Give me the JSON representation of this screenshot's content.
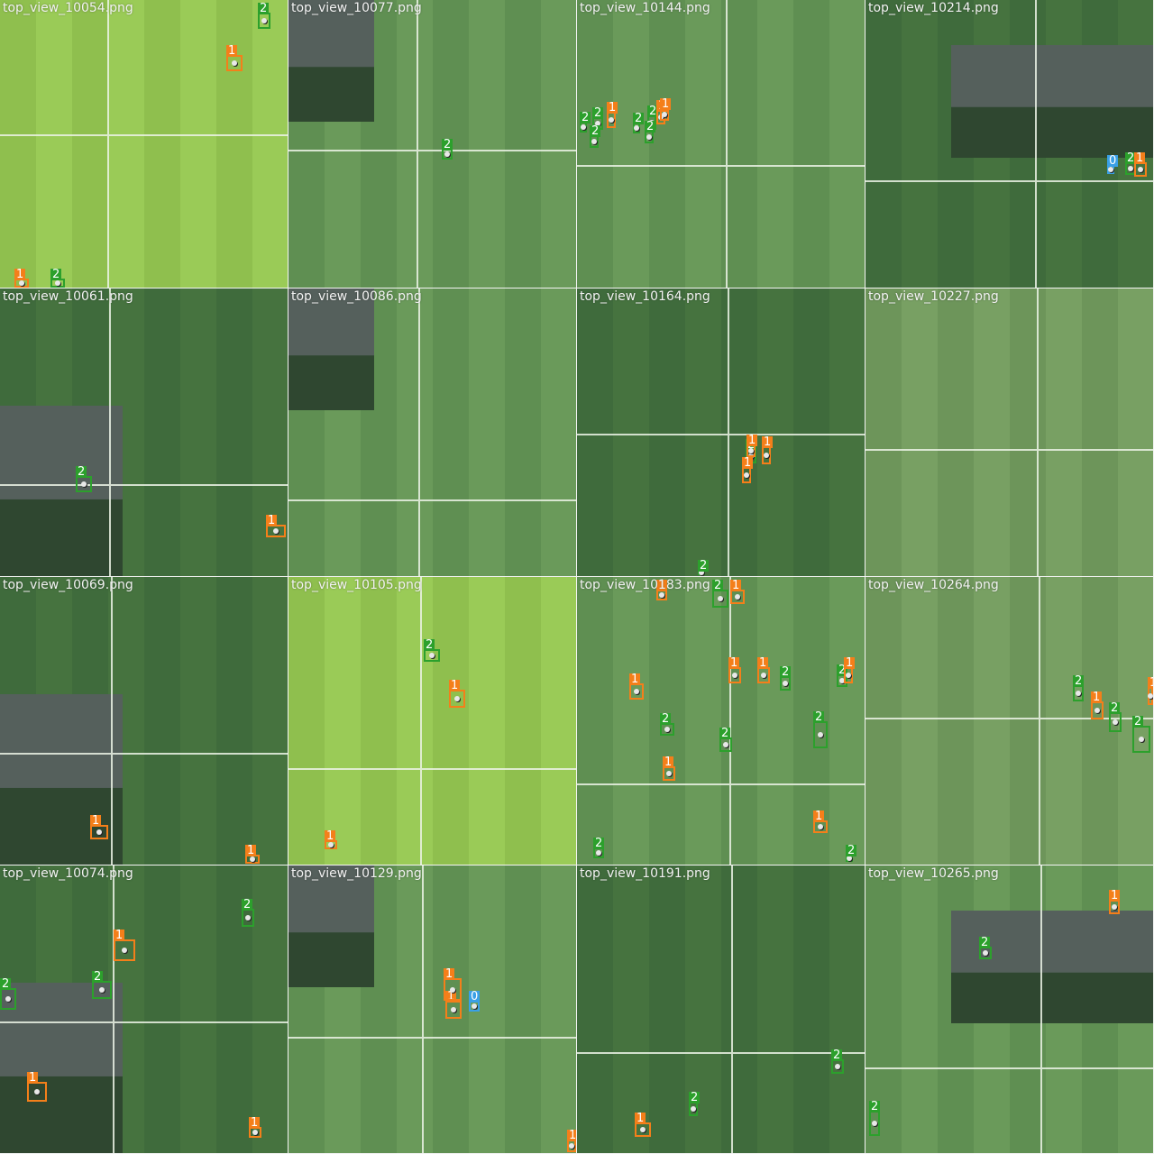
{
  "colors": {
    "class_0": "#3aa0e6",
    "class_1": "#f47f1a",
    "class_2": "#2ca02c",
    "label_text": "#f2f2f2"
  },
  "tiles": [
    {
      "name": "top_view_10054.png",
      "label": "top_view_10054.png",
      "style": "bright",
      "boxes": [
        {
          "cls": "2"
        },
        {
          "cls": "1"
        },
        {
          "cls": "1"
        },
        {
          "cls": "2"
        }
      ]
    },
    {
      "name": "top_view_10077.png",
      "label": "top_view_10077.png",
      "style": "mixed",
      "boxes": [
        {
          "cls": "2"
        }
      ]
    },
    {
      "name": "top_view_10144.png",
      "label": "top_view_10144.png",
      "style": "mixed",
      "boxes": [
        {
          "cls": "2"
        },
        {
          "cls": "2"
        },
        {
          "cls": "1"
        },
        {
          "cls": "2"
        },
        {
          "cls": "2"
        },
        {
          "cls": "2"
        },
        {
          "cls": "1"
        },
        {
          "cls": "2"
        },
        {
          "cls": "1"
        }
      ]
    },
    {
      "name": "top_view_10214.png",
      "label": "top_view_10214.png",
      "style": "dark",
      "boxes": [
        {
          "cls": "0"
        },
        {
          "cls": "2"
        },
        {
          "cls": "1"
        }
      ]
    },
    {
      "name": "top_view_10061.png",
      "label": "top_view_10061.png",
      "style": "dark",
      "boxes": [
        {
          "cls": "2"
        },
        {
          "cls": "1"
        }
      ]
    },
    {
      "name": "top_view_10086.png",
      "label": "top_view_10086.png",
      "style": "mixed",
      "boxes": []
    },
    {
      "name": "top_view_10164.png",
      "label": "top_view_10164.png",
      "style": "dark",
      "boxes": [
        {
          "cls": "2"
        },
        {
          "cls": "1"
        },
        {
          "cls": "1"
        },
        {
          "cls": "1"
        },
        {
          "cls": "2"
        }
      ]
    },
    {
      "name": "top_view_10227.png",
      "label": "top_view_10227.png",
      "style": "pale",
      "boxes": []
    },
    {
      "name": "top_view_10069.png",
      "label": "top_view_10069.png",
      "style": "dark",
      "boxes": [
        {
          "cls": "1"
        },
        {
          "cls": "1"
        }
      ]
    },
    {
      "name": "top_view_10105.png",
      "label": "top_view_10105.png",
      "style": "bright",
      "boxes": [
        {
          "cls": "2"
        },
        {
          "cls": "1"
        },
        {
          "cls": "1"
        }
      ]
    },
    {
      "name": "top_view_10183.png",
      "label": "top_view_10183.png",
      "style": "mixed",
      "boxes": [
        {
          "cls": "1"
        },
        {
          "cls": "2"
        },
        {
          "cls": "1"
        },
        {
          "cls": "1"
        },
        {
          "cls": "1"
        },
        {
          "cls": "2"
        },
        {
          "cls": "2"
        },
        {
          "cls": "1"
        },
        {
          "cls": "2"
        },
        {
          "cls": "2"
        },
        {
          "cls": "1"
        },
        {
          "cls": "1"
        },
        {
          "cls": "2"
        },
        {
          "cls": "1"
        },
        {
          "cls": "2"
        },
        {
          "cls": "2"
        }
      ]
    },
    {
      "name": "top_view_10264.png",
      "label": "top_view_10264.png",
      "style": "pale",
      "boxes": [
        {
          "cls": "2"
        },
        {
          "cls": "1"
        },
        {
          "cls": "2"
        },
        {
          "cls": "2"
        },
        {
          "cls": "1"
        }
      ]
    },
    {
      "name": "top_view_10074.png",
      "label": "top_view_10074.png",
      "style": "dark",
      "boxes": [
        {
          "cls": "2"
        },
        {
          "cls": "1"
        },
        {
          "cls": "2"
        },
        {
          "cls": "2"
        },
        {
          "cls": "1"
        },
        {
          "cls": "1"
        }
      ]
    },
    {
      "name": "top_view_10129.png",
      "label": "top_view_10129.png",
      "style": "mixed",
      "boxes": [
        {
          "cls": "0"
        },
        {
          "cls": "1"
        },
        {
          "cls": "1"
        },
        {
          "cls": "1"
        }
      ]
    },
    {
      "name": "top_view_10191.png",
      "label": "top_view_10191.png",
      "style": "dark",
      "boxes": [
        {
          "cls": "2"
        },
        {
          "cls": "2"
        },
        {
          "cls": "1"
        }
      ]
    },
    {
      "name": "top_view_10265.png",
      "label": "top_view_10265.png",
      "style": "mixed",
      "boxes": [
        {
          "cls": "1"
        },
        {
          "cls": "2"
        },
        {
          "cls": "2"
        }
      ]
    }
  ]
}
